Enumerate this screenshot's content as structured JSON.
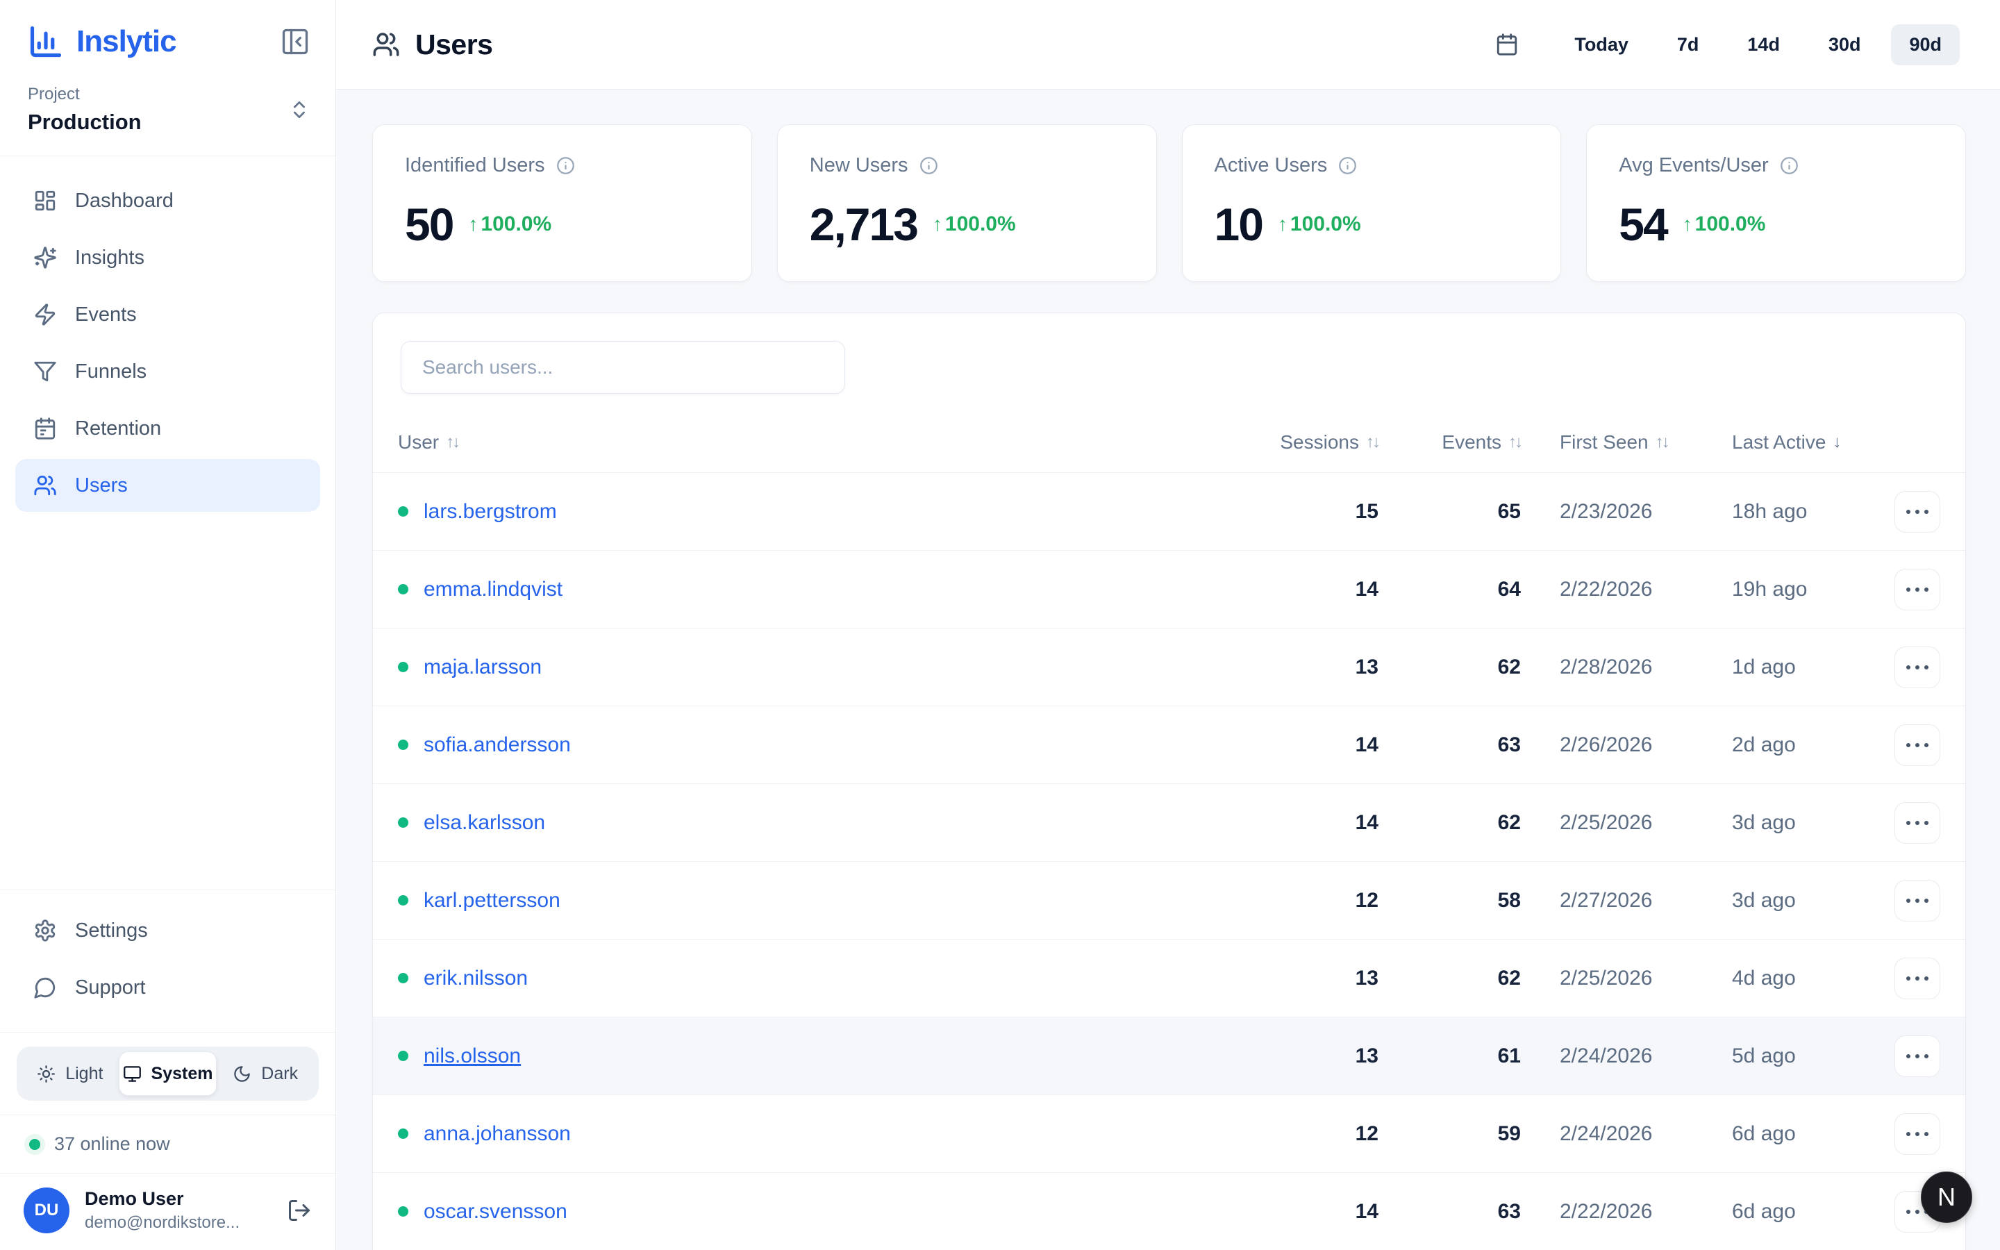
{
  "app": {
    "name": "Inslytic"
  },
  "sidebar": {
    "project_label": "Project",
    "project_value": "Production",
    "nav": [
      {
        "label": "Dashboard"
      },
      {
        "label": "Insights"
      },
      {
        "label": "Events"
      },
      {
        "label": "Funnels"
      },
      {
        "label": "Retention"
      },
      {
        "label": "Users",
        "active": true
      }
    ],
    "footer_nav": [
      {
        "label": "Settings"
      },
      {
        "label": "Support"
      }
    ],
    "theme_toggle": {
      "options": [
        "Light",
        "System",
        "Dark"
      ],
      "selected": "System"
    },
    "online_status": "37 online now",
    "user": {
      "initials": "DU",
      "name": "Demo User",
      "email": "demo@nordikstore..."
    }
  },
  "header": {
    "title": "Users",
    "ranges": [
      "Today",
      "7d",
      "14d",
      "30d",
      "90d"
    ],
    "selected_range": "90d"
  },
  "stats": [
    {
      "label": "Identified Users",
      "value": "50",
      "trend_arrow": "↑",
      "trend": "100.0%"
    },
    {
      "label": "New Users",
      "value": "2,713",
      "trend_arrow": "↑",
      "trend": "100.0%"
    },
    {
      "label": "Active Users",
      "value": "10",
      "trend_arrow": "↑",
      "trend": "100.0%"
    },
    {
      "label": "Avg Events/User",
      "value": "54",
      "trend_arrow": "↑",
      "trend": "100.0%"
    }
  ],
  "table": {
    "search_placeholder": "Search users...",
    "columns": [
      {
        "label": "User",
        "sort": "↑↓"
      },
      {
        "label": "Sessions",
        "sort": "↑↓"
      },
      {
        "label": "Events",
        "sort": "↑↓"
      },
      {
        "label": "First Seen",
        "sort": "↑↓"
      },
      {
        "label": "Last Active",
        "sort": "↓"
      }
    ],
    "rows": [
      {
        "user": "lars.bergstrom",
        "sessions": "15",
        "events": "65",
        "first_seen": "2/23/2026",
        "last_active": "18h ago"
      },
      {
        "user": "emma.lindqvist",
        "sessions": "14",
        "events": "64",
        "first_seen": "2/22/2026",
        "last_active": "19h ago"
      },
      {
        "user": "maja.larsson",
        "sessions": "13",
        "events": "62",
        "first_seen": "2/28/2026",
        "last_active": "1d ago"
      },
      {
        "user": "sofia.andersson",
        "sessions": "14",
        "events": "63",
        "first_seen": "2/26/2026",
        "last_active": "2d ago"
      },
      {
        "user": "elsa.karlsson",
        "sessions": "14",
        "events": "62",
        "first_seen": "2/25/2026",
        "last_active": "3d ago"
      },
      {
        "user": "karl.pettersson",
        "sessions": "12",
        "events": "58",
        "first_seen": "2/27/2026",
        "last_active": "3d ago"
      },
      {
        "user": "erik.nilsson",
        "sessions": "13",
        "events": "62",
        "first_seen": "2/25/2026",
        "last_active": "4d ago"
      },
      {
        "user": "nils.olsson",
        "sessions": "13",
        "events": "61",
        "first_seen": "2/24/2026",
        "last_active": "5d ago",
        "highlighted": true
      },
      {
        "user": "anna.johansson",
        "sessions": "12",
        "events": "59",
        "first_seen": "2/24/2026",
        "last_active": "6d ago"
      },
      {
        "user": "oscar.svensson",
        "sessions": "14",
        "events": "63",
        "first_seen": "2/22/2026",
        "last_active": "6d ago"
      }
    ]
  },
  "floating_button": {
    "label": "N"
  },
  "colors": {
    "accent": "#2563eb",
    "trend_green": "#1fae5e",
    "online_green": "#10b981",
    "page_bg": "#f6f8fb",
    "border": "#e8ecf1"
  }
}
